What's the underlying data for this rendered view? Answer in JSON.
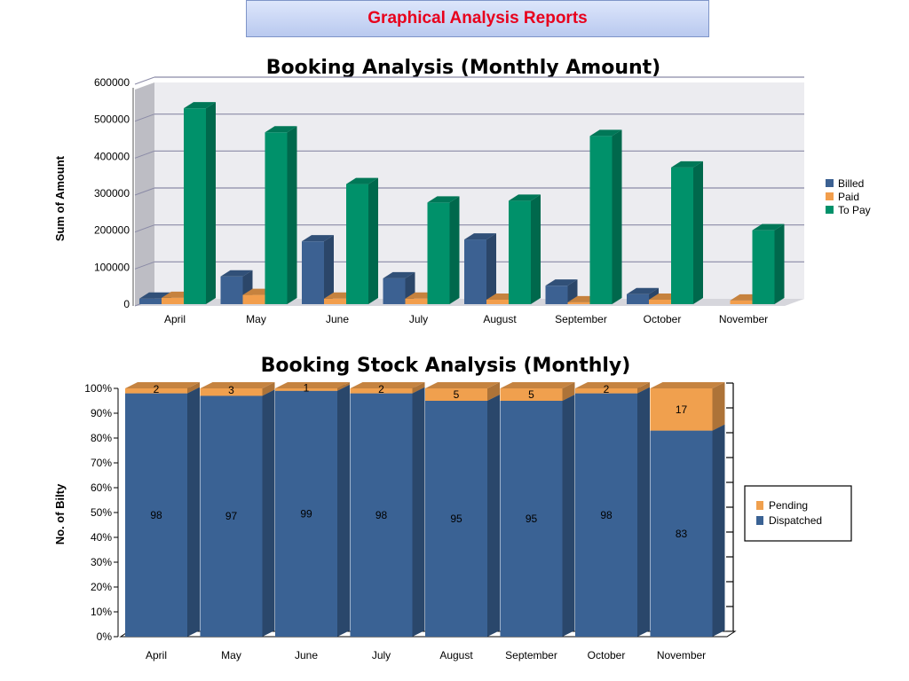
{
  "page": {
    "banner_title": "Graphical Analysis Reports"
  },
  "colors": {
    "billed": "#3c6192",
    "paid": "#f29e4c",
    "to_pay": "#00916a",
    "pending": "#f0a04e",
    "dispatched": "#3a6294",
    "banner_text": "#e8001c"
  },
  "chart_data": [
    {
      "type": "bar",
      "title": "Booking Analysis (Monthly Amount)",
      "ylabel": "Sum of Amount",
      "xlabel": "",
      "ylim": [
        0,
        600000
      ],
      "yticks": [
        "0",
        "100000",
        "200000",
        "300000",
        "400000",
        "500000",
        "600000"
      ],
      "grid": true,
      "legend_position": "right",
      "categories": [
        "April",
        "May",
        "June",
        "July",
        "August",
        "September",
        "October",
        "November"
      ],
      "series": [
        {
          "name": "Billed",
          "values": [
            15000,
            75000,
            170000,
            70000,
            175000,
            50000,
            27000,
            0
          ]
        },
        {
          "name": "Paid",
          "values": [
            17000,
            25000,
            15000,
            15000,
            12000,
            5000,
            12000,
            10000
          ]
        },
        {
          "name": "To Pay",
          "values": [
            530000,
            465000,
            325000,
            275000,
            280000,
            455000,
            370000,
            200000
          ]
        }
      ]
    },
    {
      "type": "bar",
      "stacked": true,
      "title": "Booking Stock Analysis (Monthly)",
      "ylabel": "No. of Bilty",
      "ylim": [
        0,
        100
      ],
      "yticks": [
        "0%",
        "10%",
        "20%",
        "30%",
        "40%",
        "50%",
        "60%",
        "70%",
        "80%",
        "90%",
        "100%"
      ],
      "legend_position": "right",
      "categories": [
        "April",
        "May",
        "June",
        "July",
        "August",
        "September",
        "October",
        "November"
      ],
      "series": [
        {
          "name": "Pending",
          "values": [
            2,
            3,
            1,
            2,
            5,
            5,
            2,
            17
          ]
        },
        {
          "name": "Dispatched",
          "values": [
            98,
            97,
            99,
            98,
            95,
            95,
            98,
            83
          ]
        }
      ]
    }
  ]
}
